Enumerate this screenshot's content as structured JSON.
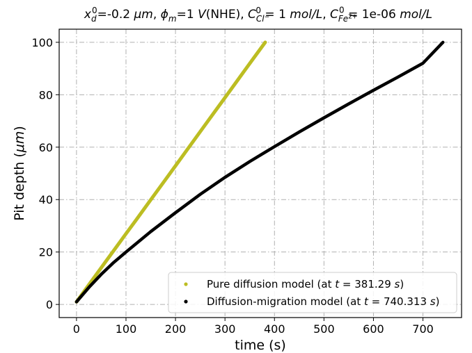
{
  "chart_data": {
    "type": "line",
    "title": {
      "parts": [
        {
          "t": "x",
          "style": "italic"
        },
        {
          "t": "d",
          "style": "italic",
          "pos": "sub"
        },
        {
          "t": "0",
          "pos": "sup"
        },
        {
          "t": "=-0.2 "
        },
        {
          "t": "μm",
          "style": "italic"
        },
        {
          "t": ", "
        },
        {
          "t": "ϕ",
          "style": "italic"
        },
        {
          "t": "m",
          "style": "italic",
          "pos": "sub"
        },
        {
          "t": "=1 "
        },
        {
          "t": "V",
          "style": "italic"
        },
        {
          "t": "(NHE), "
        },
        {
          "t": "C",
          "style": "italic"
        },
        {
          "t": "Cl",
          "style": "italic",
          "pos": "sub"
        },
        {
          "t": "−",
          "pos": "subsup"
        },
        {
          "t": "0",
          "pos": "sup"
        },
        {
          "t": " = 1 "
        },
        {
          "t": "mol/L",
          "style": "italic"
        },
        {
          "t": ", "
        },
        {
          "t": "C",
          "style": "italic"
        },
        {
          "t": "Fe",
          "style": "italic",
          "pos": "sub"
        },
        {
          "t": "2+",
          "pos": "subsup"
        },
        {
          "t": "0",
          "pos": "sup"
        },
        {
          "t": " = 1e-06 "
        },
        {
          "t": "mol/L",
          "style": "italic"
        }
      ]
    },
    "xlabel": "time (s)",
    "ylabel_parts": [
      {
        "t": "Pit depth ("
      },
      {
        "t": "μm",
        "style": "italic"
      },
      {
        "t": ")"
      }
    ],
    "xlim": [
      -35,
      778
    ],
    "ylim": [
      -5,
      105
    ],
    "xticks": [
      0,
      100,
      200,
      300,
      400,
      500,
      600,
      700
    ],
    "yticks": [
      0,
      20,
      40,
      60,
      80,
      100
    ],
    "grid": true,
    "legend_position": "lower-right",
    "series": [
      {
        "name_parts": [
          {
            "t": "Pure diffusion model (at "
          },
          {
            "t": "t",
            "style": "italic"
          },
          {
            "t": " = 381.29 "
          },
          {
            "t": "s",
            "style": "italic"
          },
          {
            "t": ")"
          }
        ],
        "color": "#bcbd22",
        "x": [
          0,
          20,
          40,
          60,
          80,
          100,
          120,
          140,
          160,
          180,
          200,
          220,
          240,
          260,
          280,
          300,
          320,
          340,
          360,
          381.29
        ],
        "y": [
          1,
          6.2,
          11.4,
          16.6,
          21.8,
          27,
          32.1,
          37.3,
          42.5,
          47.7,
          52.9,
          58.1,
          63.3,
          68.5,
          73.7,
          78.9,
          84.1,
          89.3,
          94.5,
          100
        ]
      },
      {
        "name_parts": [
          {
            "t": "Diffusion-migration model (at "
          },
          {
            "t": "t",
            "style": "italic"
          },
          {
            "t": " = 740.313 "
          },
          {
            "t": "s",
            "style": "italic"
          },
          {
            "t": ")"
          }
        ],
        "color": "#000000",
        "x": [
          0,
          25,
          50,
          75,
          100,
          150,
          200,
          250,
          300,
          350,
          400,
          450,
          500,
          550,
          600,
          650,
          700,
          740.313
        ],
        "y": [
          1,
          6.5,
          11.5,
          16,
          20,
          27.8,
          35,
          42,
          48.5,
          54.5,
          60.2,
          65.8,
          71.2,
          76.5,
          81.7,
          86.8,
          92,
          100
        ]
      }
    ]
  }
}
